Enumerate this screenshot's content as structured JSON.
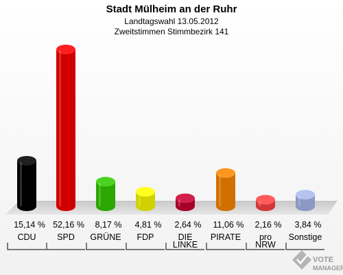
{
  "chart_data": {
    "type": "bar",
    "title": "Stadt Mülheim an der Ruhr",
    "subtitle": "Landtagswahl 13.05.2012",
    "subtitle2": "Zweitstimmen Stimmbezirk 141",
    "categories": [
      "CDU",
      "SPD",
      "GRÜNE",
      "FDP",
      "DIE LINKE",
      "PIRATE",
      "pro NRW",
      "Sonstige"
    ],
    "category_lines": [
      [
        "CDU"
      ],
      [
        "SPD"
      ],
      [
        "GRÜNE"
      ],
      [
        "FDP"
      ],
      [
        "DIE",
        "LINKE"
      ],
      [
        "PIRATE"
      ],
      [
        "pro",
        "NRW"
      ],
      [
        "Sonstige"
      ]
    ],
    "values": [
      15.14,
      52.16,
      8.17,
      4.81,
      2.64,
      11.06,
      2.16,
      3.84
    ],
    "value_labels": [
      "15,14 %",
      "52,16 %",
      "8,17 %",
      "4,81 %",
      "2,64 %",
      "11,06 %",
      "2,16 %",
      "3,84 %"
    ],
    "colors": [
      "#000000",
      "#ff0000",
      "#33cc00",
      "#ffff00",
      "#cc0033",
      "#ff8800",
      "#ff4444",
      "#aabbee"
    ],
    "ylim": [
      0,
      52.16
    ],
    "grid": false
  },
  "watermark": {
    "line1": "VOTE",
    "line2": "MANAGER"
  }
}
